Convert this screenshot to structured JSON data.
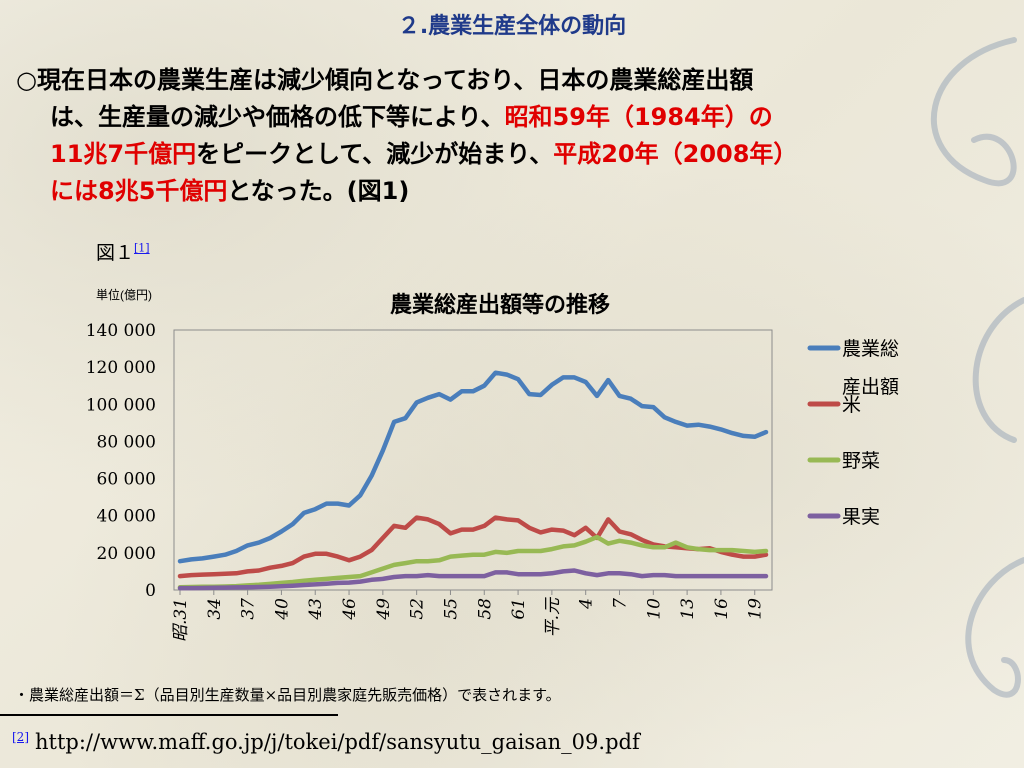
{
  "slide": {
    "title": "２.農業生産全体の動向",
    "para": {
      "l1": "○現在日本の農業生産は減少傾向となっており、日本の農業総産出額",
      "l2a": "は、生産量の減少や価格の低下等により、",
      "l2b": "昭和59年（1984年）の",
      "l3a": "11兆7千億円",
      "l3b": "をピークとして、減少が始まり、",
      "l3c": "平成20年（2008年）",
      "l4a": "には8兆5千億円",
      "l4b": "となった。(図1)"
    },
    "fig_label": "図１",
    "fig_ref": "[1]",
    "note": "・農業総産出額＝Σ（品目別生産数量×品目別農家庭先販売価格）で表されます。",
    "footnote_ref": "[2]",
    "footnote_url": "http://www.maff.go.jp/j/tokei/pdf/sansyutu_gaisan_09.pdf"
  },
  "colors": {
    "title": "#1f3a8a",
    "red_text": "#e00000",
    "series_total": "#4a7ebb",
    "series_rice": "#be4b48",
    "series_veg": "#98b954",
    "series_fruit": "#7d60a0"
  },
  "chart_data": {
    "type": "line",
    "title": "農業総産出額等の推移",
    "unit_label": "単位(億円)",
    "ylim": [
      0,
      140000
    ],
    "y_ticks": [
      "0",
      "20 000",
      "40 000",
      "60 000",
      "80 000",
      "100 000",
      "120 000",
      "140 000"
    ],
    "x_tick_labels": [
      "昭.31",
      "34",
      "37",
      "40",
      "43",
      "46",
      "49",
      "52",
      "55",
      "58",
      "61",
      "平.元",
      "4",
      "7",
      "10",
      "13",
      "16",
      "19"
    ],
    "x_start": "昭和31",
    "x_end": "平成20",
    "grid": false,
    "legend_position": "right",
    "series": [
      {
        "name": "農業総産出額",
        "values": [
          15500,
          16500,
          17000,
          18000,
          19000,
          21000,
          24000,
          25500,
          28000,
          31500,
          35500,
          41500,
          43500,
          46500,
          46500,
          45500,
          51000,
          61500,
          75000,
          90500,
          92500,
          101000,
          103500,
          105500,
          102500,
          107000,
          107000,
          110000,
          117000,
          116000,
          113500,
          105500,
          105000,
          110500,
          114500,
          114500,
          112000,
          104500,
          113000,
          104500,
          103000,
          99000,
          98500,
          93000,
          90500,
          88500,
          89000,
          88000,
          86500,
          84500,
          83000,
          82500,
          85000
        ]
      },
      {
        "name": "米",
        "values": [
          7500,
          8000,
          8300,
          8500,
          8700,
          9000,
          10000,
          10500,
          12000,
          13000,
          14500,
          18000,
          19500,
          19500,
          18000,
          16000,
          18000,
          21500,
          28000,
          34500,
          33500,
          39000,
          38000,
          35500,
          30500,
          32500,
          32500,
          34500,
          39000,
          38000,
          37500,
          33500,
          31000,
          32500,
          32000,
          29500,
          33500,
          28000,
          38000,
          31500,
          30000,
          27000,
          24500,
          23500,
          23000,
          22500,
          22000,
          22500,
          20500,
          19000,
          18000,
          18000,
          19000
        ]
      },
      {
        "name": "野菜",
        "values": [
          1500,
          1600,
          1700,
          1800,
          1900,
          2100,
          2500,
          2800,
          3300,
          3800,
          4300,
          5000,
          5500,
          6000,
          6500,
          7000,
          7500,
          9500,
          11500,
          13500,
          14500,
          15500,
          15500,
          16000,
          18000,
          18500,
          19000,
          19000,
          20500,
          20000,
          21000,
          21000,
          21000,
          22000,
          23500,
          24000,
          26000,
          28500,
          25000,
          26500,
          25500,
          24000,
          23000,
          23000,
          25500,
          23000,
          22000,
          21500,
          21500,
          21500,
          21000,
          20500,
          21000
        ]
      },
      {
        "name": "果実",
        "values": [
          1000,
          1000,
          1100,
          1200,
          1300,
          1400,
          1500,
          1600,
          1800,
          2000,
          2300,
          2700,
          3000,
          3400,
          3800,
          4000,
          4500,
          5500,
          6000,
          7000,
          7500,
          7500,
          8000,
          7500,
          7500,
          7500,
          7500,
          7500,
          9500,
          9500,
          8500,
          8500,
          8500,
          9000,
          10000,
          10500,
          9000,
          8000,
          9000,
          9000,
          8500,
          7500,
          8000,
          8000,
          7500,
          7500,
          7500,
          7500,
          7500,
          7500,
          7500,
          7500,
          7500
        ]
      }
    ]
  }
}
